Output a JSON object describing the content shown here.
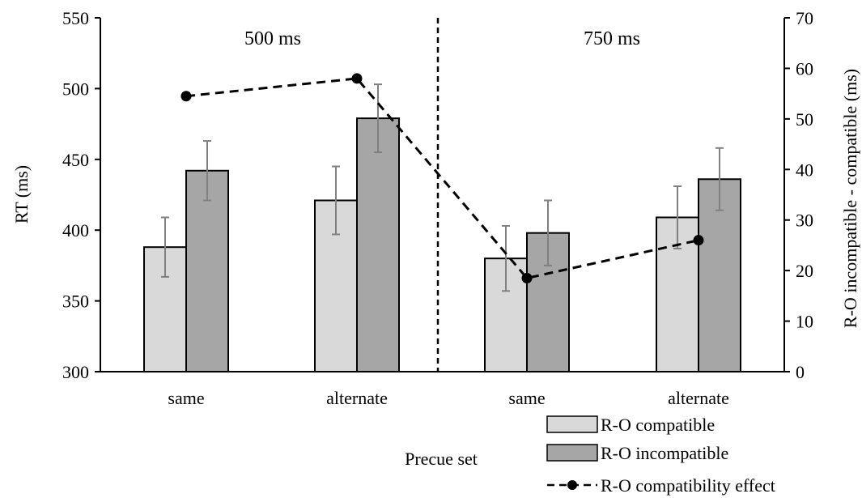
{
  "chart_data": {
    "type": "bar",
    "title": "",
    "xlabel": "Precue set",
    "ylabel": "RT (ms)",
    "y2label": "R-O incompatible - compatible (ms)",
    "ylim": [
      300,
      550
    ],
    "yticks": [
      300,
      350,
      400,
      450,
      500,
      550
    ],
    "y2lim": [
      0,
      70
    ],
    "y2ticks": [
      0,
      10,
      20,
      30,
      40,
      50,
      60,
      70
    ],
    "categories": [
      "same",
      "alternate",
      "same",
      "alternate"
    ],
    "groups": [
      {
        "label": "500 ms",
        "categories": [
          0,
          1
        ]
      },
      {
        "label": "750 ms",
        "categories": [
          2,
          3
        ]
      }
    ],
    "series": [
      {
        "name": "R-O compatible",
        "type": "bar",
        "axis": "left",
        "color": "#d9d9d9",
        "values": [
          388,
          421,
          380,
          409
        ],
        "errors": [
          21,
          24,
          23,
          22
        ]
      },
      {
        "name": "R-O incompatible",
        "type": "bar",
        "axis": "left",
        "color": "#a6a6a6",
        "values": [
          442,
          479,
          398,
          436
        ],
        "errors": [
          21,
          24,
          23,
          22
        ]
      },
      {
        "name": "R-O compatibility effect",
        "type": "line",
        "axis": "right",
        "color": "#000000",
        "style": "dashed",
        "values": [
          54.5,
          58,
          18.5,
          26
        ]
      }
    ],
    "legend_position": "bottom-right",
    "grid": false
  }
}
